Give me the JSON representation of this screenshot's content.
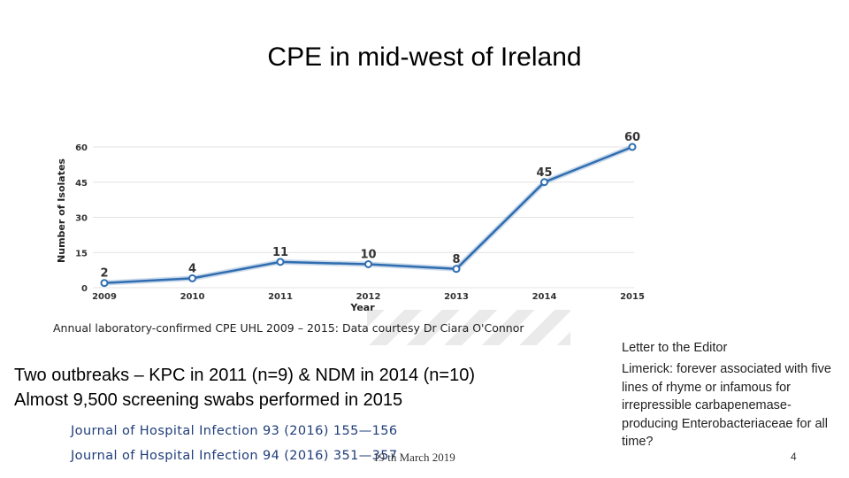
{
  "slide": {
    "title": "CPE in mid-west of Ireland",
    "caption": "Annual laboratory-confirmed CPE UHL 2009 – 2015: Data courtesy Dr Ciara O'Connor",
    "body_line1": "Two outbreaks – KPC in 2011 (n=9) & NDM in 2014 (n=10)",
    "body_line2": "Almost 9,500 screening swabs performed in 2015",
    "ref1": "Journal of Hospital Infection 93 (2016) 155—156",
    "ref2": "Journal of Hospital Infection 94 (2016) 351—357",
    "footer_date": "19 th March 2019",
    "slide_number": "4",
    "letter_heading": "Letter to the Editor",
    "letter_text": "Limerick: forever associated with five lines of rhyme or infamous for irrepressible carbapenemase-producing Enterobacteriaceae for all time?"
  },
  "colors": {
    "line": "#2f6db0",
    "marker_fill": "#ffffff",
    "grid": "#e3e3e3"
  },
  "chart_data": {
    "type": "line",
    "title": "",
    "xlabel": "Year",
    "ylabel": "Number of Isolates",
    "categories": [
      "2009",
      "2010",
      "2011",
      "2012",
      "2013",
      "2014",
      "2015"
    ],
    "series": [
      {
        "name": "Isolates",
        "values": [
          2,
          4,
          11,
          10,
          8,
          45,
          60
        ]
      }
    ],
    "ylim": [
      0,
      60
    ],
    "yticks": [
      0,
      15,
      30,
      45,
      60
    ],
    "grid": true
  }
}
